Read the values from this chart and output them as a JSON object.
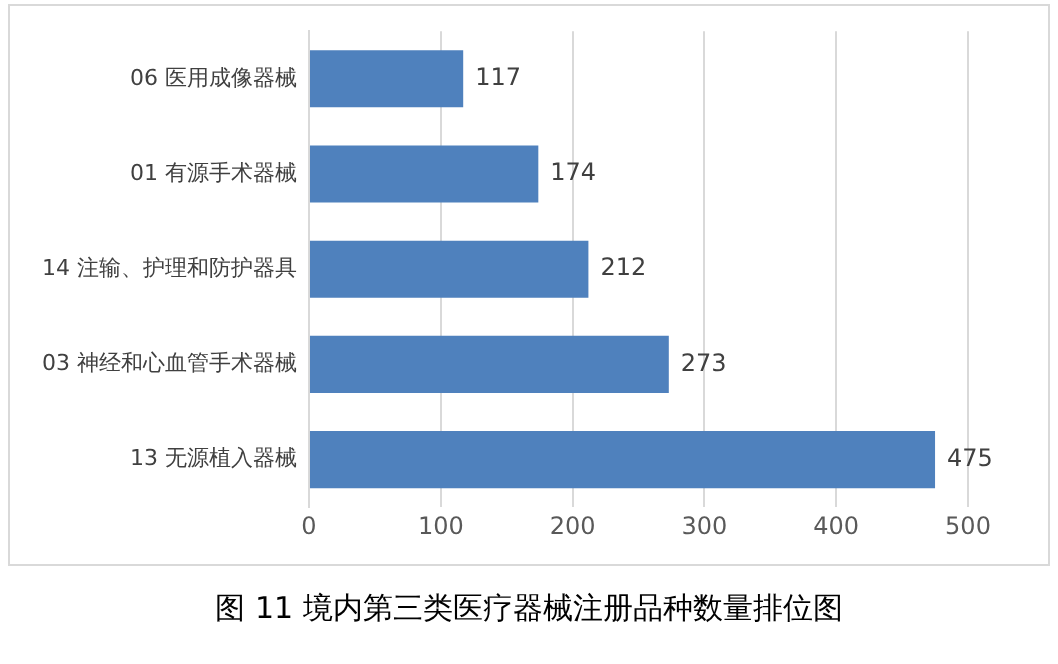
{
  "chart_data": {
    "type": "bar",
    "orientation": "horizontal",
    "title": "图 11  境内第三类医疗器械注册品种数量排位图",
    "categories": [
      "06 医用成像器械",
      "01 有源手术器械",
      "14 注输、护理和防护器具",
      "03 神经和心血管手术器械",
      "13 无源植入器械"
    ],
    "values": [
      117,
      174,
      212,
      273,
      475
    ],
    "color": "#4f81bd",
    "xlim": [
      0,
      500
    ],
    "xticks": [
      0,
      100,
      200,
      300,
      400,
      500
    ],
    "grid": "x",
    "data_labels": true
  }
}
